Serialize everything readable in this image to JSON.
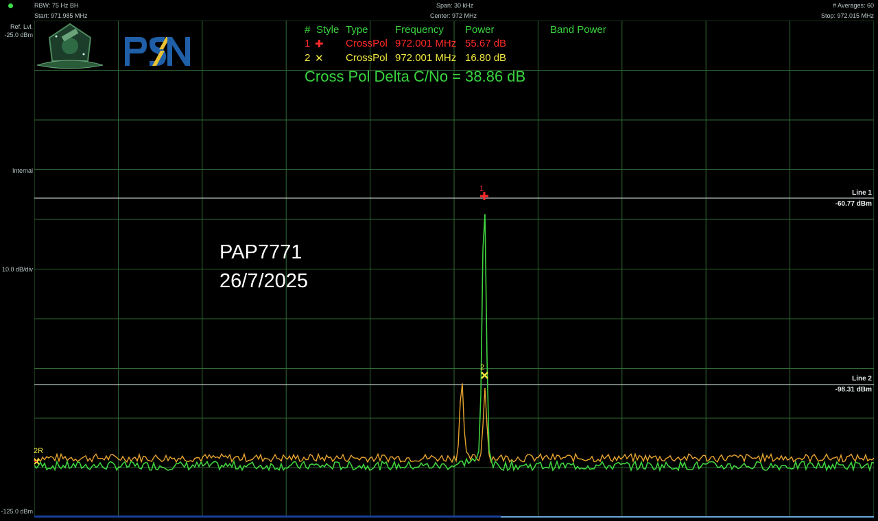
{
  "header": {
    "rbw": "RBW: 75 Hz BH",
    "start": "Start: 971.985 MHz",
    "span": "Span: 30 kHz",
    "center": "Center: 972 MHz",
    "averages": "# Averages: 60",
    "stop": "Stop: 972.015 MHz"
  },
  "axis": {
    "ref_label": "Ref. Lvl.",
    "ref_value": "-25.0 dBm",
    "internal": "Internal",
    "scale": "10.0 dB/div",
    "bottom": "-125.0 dBm"
  },
  "legend": {
    "headers": {
      "num": "#",
      "style": "Style",
      "type": "Type",
      "frequency": "Frequency",
      "power": "Power",
      "band_power": "Band Power"
    },
    "rows": [
      {
        "num": "1",
        "style_symbol": "✚",
        "type": "CrossPol",
        "frequency": "972.001 MHz",
        "power": "55.67 dB",
        "color": "#ff2a2a"
      },
      {
        "num": "2",
        "style_symbol": "✕",
        "type": "CrossPol",
        "frequency": "972.001 MHz",
        "power": "16.80 dB",
        "color": "#f2e940"
      }
    ]
  },
  "delta_text": "Cross Pol Delta C/No = 38.86 dB",
  "overlay": {
    "line1": "PAP7771",
    "line2": "26/7/2025"
  },
  "ref_lines": [
    {
      "name": "Line 1",
      "value": "-60.77 dBm",
      "level_dbm": -60.77
    },
    {
      "name": "Line 2",
      "value": "-98.31 dBm",
      "level_dbm": -98.31
    }
  ],
  "markers": [
    {
      "label": "1",
      "color": "#ff2a2a"
    },
    {
      "label": "2",
      "color": "#f2e940"
    },
    {
      "label": "2R",
      "color": "#f2e940"
    }
  ],
  "logos": {
    "left": "satellite-emblem-logo",
    "right": "PSN"
  },
  "colors": {
    "grid": "#2f6a32",
    "trace_green": "#3fd23f",
    "trace_orange": "#e8a531",
    "background": "#000000"
  }
}
